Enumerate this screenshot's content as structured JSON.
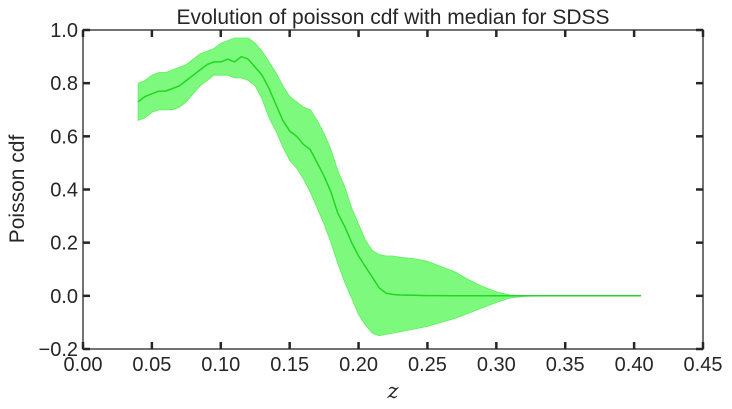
{
  "chart_data": {
    "type": "area",
    "title": "Evolution of poisson cdf with median for SDSS",
    "xlabel": "z",
    "ylabel": "Poisson cdf",
    "xlim": [
      0.0,
      0.45
    ],
    "ylim": [
      -0.2,
      1.0
    ],
    "x_ticks": [
      "0.00",
      "0.05",
      "0.10",
      "0.15",
      "0.20",
      "0.25",
      "0.30",
      "0.35",
      "0.40",
      "0.45"
    ],
    "y_ticks": [
      "−0.2",
      "0.0",
      "0.2",
      "0.4",
      "0.6",
      "0.8",
      "1.0"
    ],
    "grid": false,
    "colors": {
      "band": "#7dfa7d",
      "median": "#22d622"
    },
    "series": [
      {
        "x": [
          0.04,
          0.045,
          0.05,
          0.055,
          0.06,
          0.065,
          0.07,
          0.075,
          0.08,
          0.085,
          0.09,
          0.095,
          0.1,
          0.105,
          0.11,
          0.115,
          0.12,
          0.125,
          0.13,
          0.135,
          0.14,
          0.145,
          0.15,
          0.155,
          0.16,
          0.165,
          0.17,
          0.175,
          0.18,
          0.185,
          0.19,
          0.195,
          0.2,
          0.205,
          0.21,
          0.215,
          0.22,
          0.225,
          0.23,
          0.24,
          0.25,
          0.26,
          0.27,
          0.28,
          0.29,
          0.3,
          0.31,
          0.32,
          0.34,
          0.36,
          0.38,
          0.405
        ],
        "median": [
          0.73,
          0.75,
          0.76,
          0.77,
          0.77,
          0.78,
          0.79,
          0.81,
          0.83,
          0.85,
          0.87,
          0.88,
          0.88,
          0.89,
          0.88,
          0.9,
          0.89,
          0.86,
          0.83,
          0.78,
          0.72,
          0.66,
          0.62,
          0.6,
          0.57,
          0.55,
          0.5,
          0.45,
          0.39,
          0.31,
          0.26,
          0.2,
          0.15,
          0.11,
          0.07,
          0.03,
          0.01,
          0.005,
          0.003,
          0.002,
          0.001,
          0.001,
          0.0,
          0.0,
          0.0,
          0.0,
          0.0,
          0.0,
          0.0,
          0.0,
          0.0,
          0.0
        ],
        "upper": [
          0.8,
          0.81,
          0.83,
          0.84,
          0.84,
          0.85,
          0.86,
          0.87,
          0.89,
          0.91,
          0.92,
          0.93,
          0.95,
          0.96,
          0.97,
          0.97,
          0.97,
          0.95,
          0.92,
          0.88,
          0.84,
          0.79,
          0.75,
          0.73,
          0.71,
          0.7,
          0.66,
          0.61,
          0.55,
          0.47,
          0.41,
          0.33,
          0.27,
          0.21,
          0.17,
          0.155,
          0.15,
          0.15,
          0.145,
          0.14,
          0.13,
          0.11,
          0.09,
          0.06,
          0.035,
          0.015,
          0.003,
          0.0,
          0.0,
          0.0,
          0.0,
          0.0
        ],
        "lower": [
          0.66,
          0.67,
          0.69,
          0.7,
          0.7,
          0.7,
          0.71,
          0.73,
          0.76,
          0.79,
          0.81,
          0.83,
          0.83,
          0.83,
          0.82,
          0.82,
          0.81,
          0.79,
          0.74,
          0.67,
          0.62,
          0.56,
          0.51,
          0.48,
          0.44,
          0.39,
          0.33,
          0.27,
          0.2,
          0.12,
          0.05,
          -0.01,
          -0.07,
          -0.11,
          -0.14,
          -0.15,
          -0.145,
          -0.14,
          -0.135,
          -0.125,
          -0.115,
          -0.1,
          -0.085,
          -0.065,
          -0.045,
          -0.025,
          -0.008,
          -0.002,
          0.0,
          0.0,
          0.0,
          0.0
        ]
      }
    ]
  }
}
